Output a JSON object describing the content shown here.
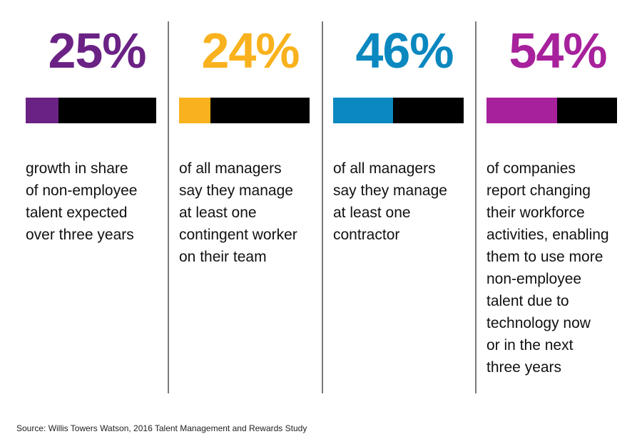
{
  "chart_data": {
    "type": "bar",
    "categories": [
      "growth in share of non-employee talent expected over three years",
      "of all managers say they manage at least one contingent worker on their team",
      "of all managers say they manage at least one contractor",
      "of companies report changing their workforce activities, enabling them to use more non-employee talent due to technology now or in the next three years"
    ],
    "values": [
      25,
      24,
      46,
      54
    ],
    "ylim": [
      0,
      100
    ]
  },
  "stats": [
    {
      "value_text": "25%",
      "value": 25,
      "color": "#6b2285",
      "description": "growth in share\nof non-employee\ntalent expected\nover three years"
    },
    {
      "value_text": "24%",
      "value": 24,
      "color": "#f9b21d",
      "description": "of all managers\nsay they manage\nat least one\ncontingent worker\non their team"
    },
    {
      "value_text": "46%",
      "value": 46,
      "color": "#0a88bf",
      "description": "of all managers\nsay they manage\nat least one\ncontractor"
    },
    {
      "value_text": "54%",
      "value": 54,
      "color": "#a7219c",
      "description": "of companies\nreport changing\ntheir workforce\nactivities, enabling\nthem to use more\nnon-employee\ntalent due to\ntechnology now\nor in the next\nthree years"
    }
  ],
  "source": "Source: Willis Towers Watson, 2016 Talent Management and Rewards Study"
}
